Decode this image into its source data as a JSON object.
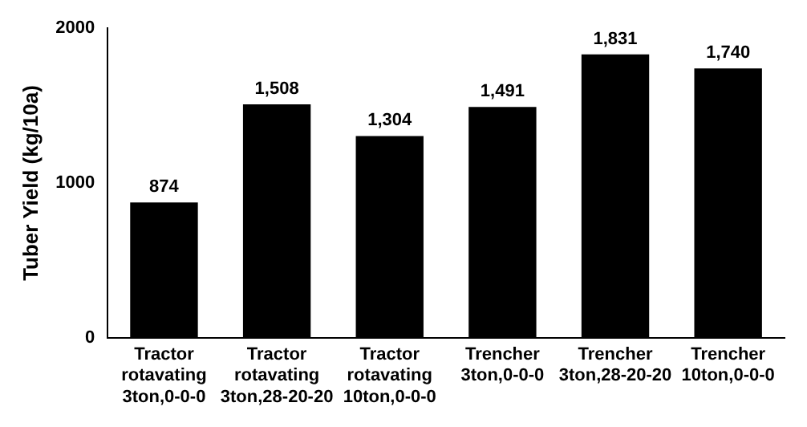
{
  "chart_data": {
    "type": "bar",
    "ylabel": "Tuber Yield (kg/10a)",
    "categories": [
      "Tractor\nrotavating\n3ton,0-0-0",
      "Tractor\nrotavating\n3ton,28-20-20",
      "Tractor\nrotavating\n10ton,0-0-0",
      "Trencher\n3ton,0-0-0",
      "Trencher\n3ton,28-20-20",
      "Trencher\n10ton,0-0-0"
    ],
    "values": [
      874,
      1508,
      1304,
      1491,
      1831,
      1740
    ],
    "value_labels": [
      "874",
      "1,508",
      "1,304",
      "1,491",
      "1,831",
      "1,740"
    ],
    "color": "#000000",
    "ylim": [
      0,
      2000
    ],
    "yticks": [
      0,
      1000,
      2000
    ],
    "grid": false,
    "legend": false
  }
}
